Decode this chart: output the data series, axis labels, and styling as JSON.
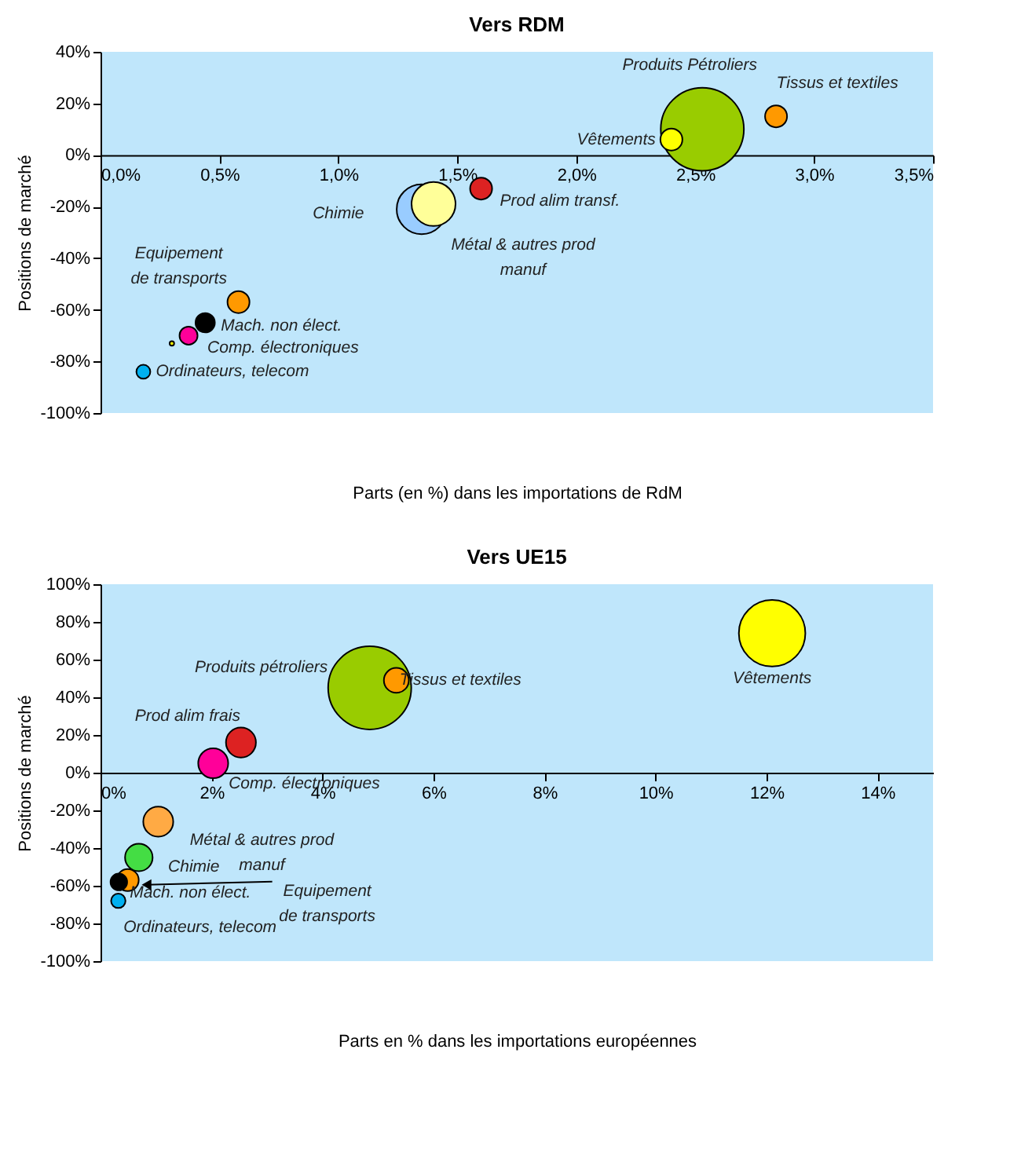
{
  "chart_data": [
    {
      "type": "bubble",
      "title": "Vers RDM",
      "xlabel": "Parts (en %)  dans les importations de RdM",
      "ylabel": "Positions de marché",
      "series": [
        {
          "name": "Produits Pétroliers",
          "color": "#99cc00",
          "x": [
            2.53
          ],
          "values": [
            10
          ],
          "sizes": [
            1
          ]
        },
        {
          "name": "Tissus et textiles",
          "color": "#ff9900",
          "x": [
            2.84
          ],
          "values": [
            15
          ],
          "sizes": [
            0.07
          ]
        },
        {
          "name": "Vêtements",
          "color": "#ffff00",
          "x": [
            2.4
          ],
          "values": [
            6
          ],
          "sizes": [
            0.07
          ]
        },
        {
          "name": "Prod alim transf.",
          "color": "#dd2222",
          "x": [
            1.6
          ],
          "values": [
            -13
          ],
          "sizes": [
            0.07
          ]
        },
        {
          "name": "Chimie",
          "color": "#99ccff",
          "x": [
            1.35
          ],
          "values": [
            -21
          ],
          "sizes": [
            0.36
          ]
        },
        {
          "name": "Métal & autres prod\nmanuf",
          "color": "#ffff99",
          "x": [
            1.4
          ],
          "values": [
            -19
          ],
          "sizes": [
            0.28
          ]
        },
        {
          "name": "Equipement\nde transports",
          "color": "#ff9900",
          "x": [
            0.58
          ],
          "values": [
            -57
          ],
          "sizes": [
            0.07
          ]
        },
        {
          "name": "Mach. non élect.",
          "color": "#000000",
          "x": [
            0.44
          ],
          "values": [
            -65
          ],
          "sizes": [
            0.054
          ]
        },
        {
          "name": "Comp. électroniques",
          "color": "#ff0099",
          "x": [
            0.37
          ],
          "values": [
            -70
          ],
          "sizes": [
            0.047
          ]
        },
        {
          "color": "#ffff00",
          "x": [
            0.3
          ],
          "values": [
            -73
          ],
          "sizes": [
            0.003
          ]
        },
        {
          "name": "Ordinateurs, telecom",
          "color": "#00b0f0",
          "x": [
            0.18
          ],
          "values": [
            -84
          ],
          "sizes": [
            0.028
          ]
        }
      ],
      "xlim": [
        0,
        3.5
      ],
      "xticks": [
        {
          "value": 0,
          "label": "0,0%"
        },
        {
          "value": 0.5,
          "label": "0,5%"
        },
        {
          "value": 1,
          "label": "1,0%"
        },
        {
          "value": 1.5,
          "label": "1,5%"
        },
        {
          "value": 2,
          "label": "2,0%"
        },
        {
          "value": 2.5,
          "label": "2,5%"
        },
        {
          "value": 3,
          "label": "3,0%"
        },
        {
          "value": 3.5,
          "label": "3,5%"
        }
      ],
      "ylim": [
        -100,
        40
      ],
      "yticks": [
        {
          "value": -100,
          "label": "-100%"
        },
        {
          "value": -80,
          "label": "-80%"
        },
        {
          "value": -60,
          "label": "-60%"
        },
        {
          "value": -40,
          "label": "-40%"
        },
        {
          "value": -20,
          "label": "-20%"
        },
        {
          "value": 0,
          "label": "0%"
        },
        {
          "value": 20,
          "label": "20%"
        },
        {
          "value": 40,
          "label": "40%"
        }
      ],
      "grid": false
    },
    {
      "type": "bubble",
      "title": "Vers UE15",
      "xlabel": "Parts en % dans les importations européennes",
      "ylabel": "Positions de marché",
      "series": [
        {
          "name": "Produits pétroliers",
          "color": "#99cc00",
          "x": [
            4.85
          ],
          "values": [
            45
          ],
          "sizes": [
            1
          ]
        },
        {
          "name": "Vêtements",
          "color": "#ffff00",
          "x": [
            12.1
          ],
          "values": [
            74
          ],
          "sizes": [
            0.64
          ]
        },
        {
          "name": "Tissus et textiles",
          "color": "#ff9900",
          "x": [
            5.33
          ],
          "values": [
            49
          ],
          "sizes": [
            0.09
          ]
        },
        {
          "name": "Prod alim frais",
          "color": "#dd2222",
          "x": [
            2.53
          ],
          "values": [
            16
          ],
          "sizes": [
            0.13
          ]
        },
        {
          "name": "Comp. électroniques",
          "color": "#ff0099",
          "x": [
            2.03
          ],
          "values": [
            5
          ],
          "sizes": [
            0.13
          ]
        },
        {
          "name": "Métal & autres prod\nmanuf",
          "color": "#ffaa44",
          "x": [
            1.04
          ],
          "values": [
            -26
          ],
          "sizes": [
            0.13
          ]
        },
        {
          "name": "Chimie",
          "color": "#44dd44",
          "x": [
            0.69
          ],
          "values": [
            -45
          ],
          "sizes": [
            0.11
          ]
        },
        {
          "name": "Mach. non élect.",
          "color": "#000000",
          "x": [
            0.33
          ],
          "values": [
            -58
          ],
          "sizes": [
            0.04
          ]
        },
        {
          "name": "Equipement\nde transports",
          "color": "#ff9900",
          "x": [
            0.49
          ],
          "values": [
            -57
          ],
          "sizes": [
            0.07
          ]
        },
        {
          "name": "Ordinateurs, telecom",
          "color": "#00b0f0",
          "x": [
            0.32
          ],
          "values": [
            -68
          ],
          "sizes": [
            0.03
          ]
        }
      ],
      "xlim": [
        0,
        15
      ],
      "xticks": [
        {
          "value": 0,
          "label": "0%"
        },
        {
          "value": 2,
          "label": "2%"
        },
        {
          "value": 4,
          "label": "4%"
        },
        {
          "value": 6,
          "label": "6%"
        },
        {
          "value": 8,
          "label": "8%"
        },
        {
          "value": 10,
          "label": "10%"
        },
        {
          "value": 12,
          "label": "12%"
        },
        {
          "value": 14,
          "label": "14%"
        }
      ],
      "ylim": [
        -100,
        100
      ],
      "yticks": [
        {
          "value": -100,
          "label": "-100%"
        },
        {
          "value": -80,
          "label": "-80%"
        },
        {
          "value": -60,
          "label": "-60%"
        },
        {
          "value": -40,
          "label": "-40%"
        },
        {
          "value": -20,
          "label": "-20%"
        },
        {
          "value": 0,
          "label": "0%"
        },
        {
          "value": 20,
          "label": "20%"
        },
        {
          "value": 40,
          "label": "40%"
        },
        {
          "value": 60,
          "label": "60%"
        },
        {
          "value": 80,
          "label": "80%"
        },
        {
          "value": 100,
          "label": "100%"
        }
      ],
      "grid": false
    }
  ]
}
